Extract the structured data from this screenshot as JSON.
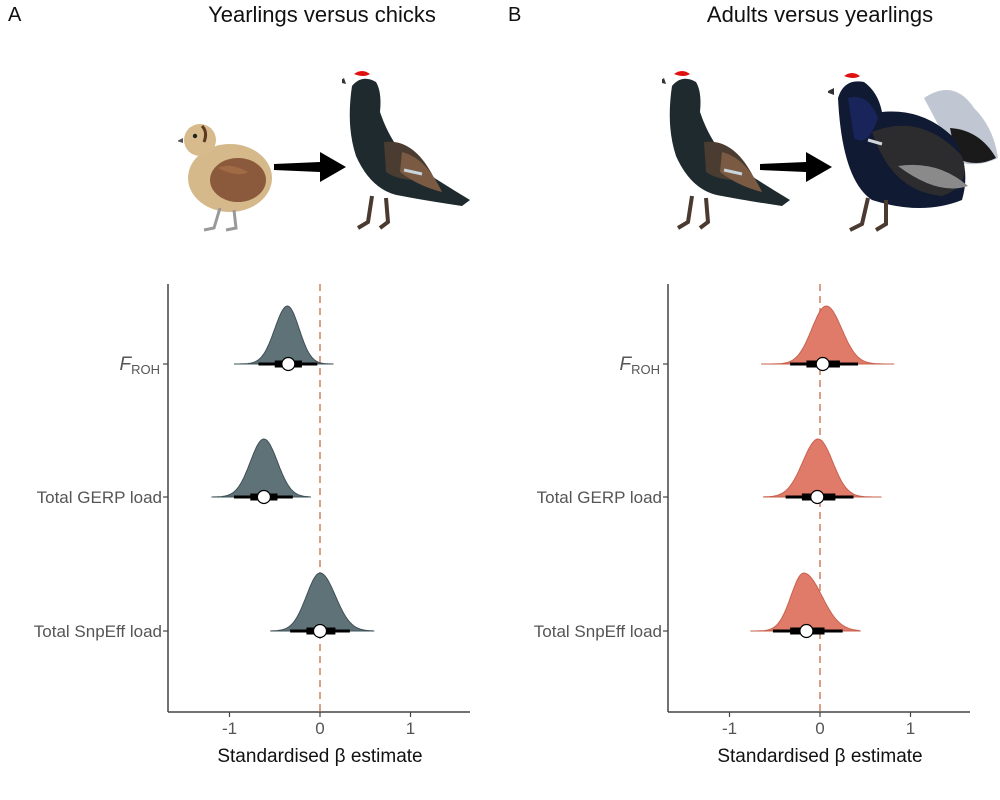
{
  "panels": {
    "a": {
      "letter": "A",
      "title": "Yearlings versus chicks"
    },
    "b": {
      "letter": "B",
      "title": "Adults versus yearlings"
    }
  },
  "illustrations": {
    "a": [
      "chick-bird-icon",
      "arrow-right-icon",
      "yearling-bird-icon"
    ],
    "b": [
      "yearling-bird-icon",
      "arrow-right-icon",
      "adult-bird-icon"
    ]
  },
  "colors": {
    "panel_a_fill": "#5f7278",
    "panel_b_fill": "#e07b6a",
    "reference_line": "#d08060",
    "interval": "#000000"
  },
  "chart_data": [
    {
      "type": "halfeye",
      "panel": "A",
      "title": "Yearlings versus chicks",
      "categories": [
        "F_ROH",
        "Total GERP load",
        "Total SnpEff load"
      ],
      "category_labels": [
        {
          "main": "F",
          "sub": "ROH"
        },
        {
          "main": "Total GERP load",
          "sub": ""
        },
        {
          "main": "Total SnpEff load",
          "sub": ""
        }
      ],
      "xlabel": "Standardised β estimate",
      "xlim": [
        -1.7,
        1.7
      ],
      "xticks": [
        -1,
        0,
        1
      ],
      "xtick_labels": [
        "-1",
        "0",
        "1"
      ],
      "reference_line": 0,
      "grid": false,
      "series": [
        {
          "category": "F_ROH",
          "median": -0.35,
          "ci66": [
            -0.5,
            -0.2
          ],
          "ci95": [
            -0.68,
            -0.03
          ],
          "range": [
            -0.95,
            0.15
          ],
          "peak": -0.36,
          "sd_left": 0.14,
          "sd_right": 0.13
        },
        {
          "category": "Total GERP load",
          "median": -0.62,
          "ci66": [
            -0.77,
            -0.47
          ],
          "ci95": [
            -0.95,
            -0.3
          ],
          "range": [
            -1.2,
            -0.1
          ],
          "peak": -0.62,
          "sd_left": 0.15,
          "sd_right": 0.15
        },
        {
          "category": "Total SnpEff load",
          "median": 0.0,
          "ci66": [
            -0.15,
            0.17
          ],
          "ci95": [
            -0.33,
            0.33
          ],
          "range": [
            -0.55,
            0.6
          ],
          "peak": 0.0,
          "sd_left": 0.15,
          "sd_right": 0.17
        }
      ]
    },
    {
      "type": "halfeye",
      "panel": "B",
      "title": "Adults versus yearlings",
      "categories": [
        "F_ROH",
        "Total GERP load",
        "Total SnpEff load"
      ],
      "category_labels": [
        {
          "main": "F",
          "sub": "ROH"
        },
        {
          "main": "Total GERP load",
          "sub": ""
        },
        {
          "main": "Total SnpEff load",
          "sub": ""
        }
      ],
      "xlabel": "Standardised β estimate",
      "xlim": [
        -1.7,
        1.7
      ],
      "xticks": [
        -1,
        0,
        1
      ],
      "xtick_labels": [
        "-1",
        "0",
        "1"
      ],
      "reference_line": 0,
      "grid": false,
      "series": [
        {
          "category": "F_ROH",
          "median": 0.03,
          "ci66": [
            -0.15,
            0.22
          ],
          "ci95": [
            -0.33,
            0.42
          ],
          "range": [
            -0.65,
            0.82
          ],
          "peak": 0.07,
          "sd_left": 0.16,
          "sd_right": 0.17
        },
        {
          "category": "Total GERP load",
          "median": -0.03,
          "ci66": [
            -0.2,
            0.17
          ],
          "ci95": [
            -0.38,
            0.37
          ],
          "range": [
            -0.63,
            0.68
          ],
          "peak": -0.02,
          "sd_left": 0.17,
          "sd_right": 0.16
        },
        {
          "category": "Total SnpEff load",
          "median": -0.15,
          "ci66": [
            -0.33,
            0.05
          ],
          "ci95": [
            -0.52,
            0.25
          ],
          "range": [
            -0.77,
            0.45
          ],
          "peak": -0.18,
          "sd_left": 0.14,
          "sd_right": 0.2
        }
      ]
    }
  ]
}
